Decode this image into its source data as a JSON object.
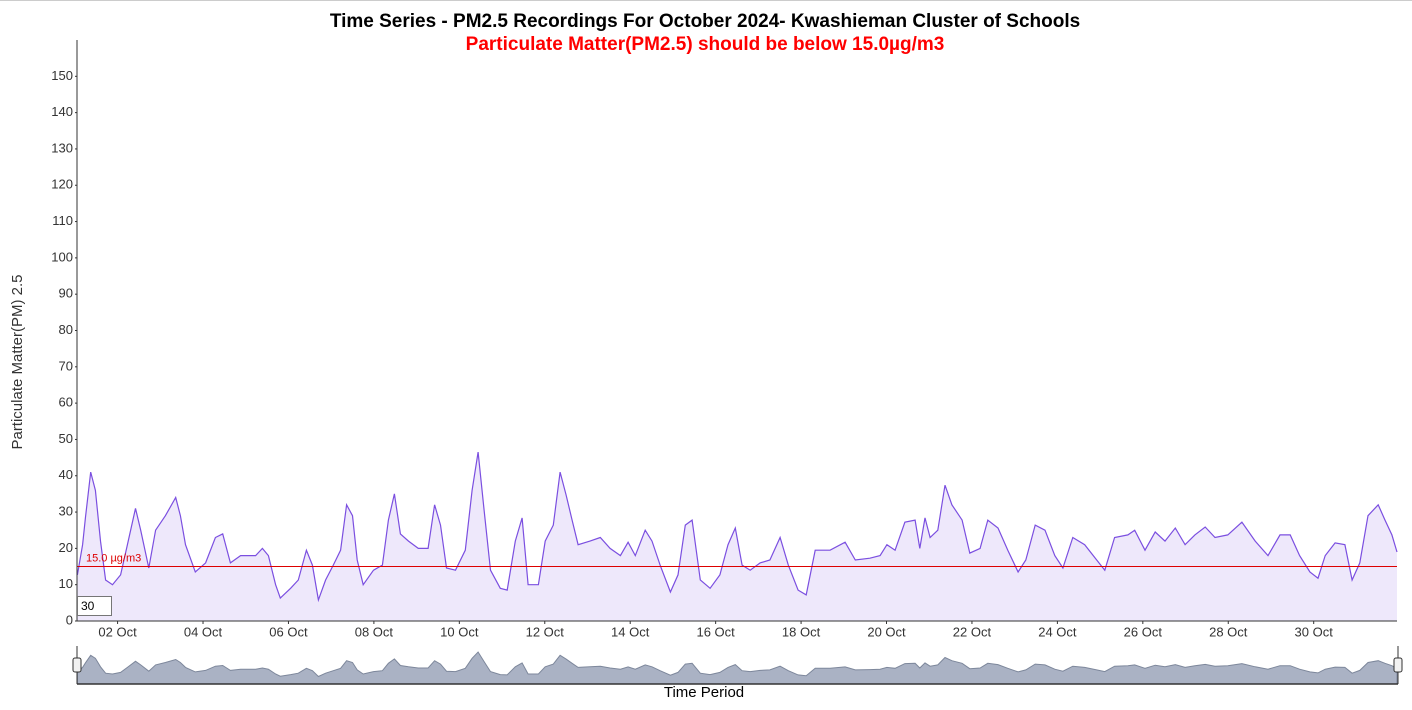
{
  "chart_data": {
    "type": "line",
    "title": "Time Series - PM2.5 Recordings For October 2024- Kwashieman Cluster of Schools",
    "subtitle": "Particulate Matter(PM2.5) should be below 15.0µg/m3",
    "y_label": "Particulate Matter(PM) 2.5",
    "x_label": "Time Period",
    "color": "#7b4fe0",
    "threshold": {
      "value": 15,
      "label": "15.0 µg/m3"
    },
    "zoom_input": "30",
    "xlim": [
      1.05,
      31.95
    ],
    "xticks": [
      {
        "value": 2,
        "label": "02 Oct"
      },
      {
        "value": 4,
        "label": "04 Oct"
      },
      {
        "value": 6,
        "label": "06 Oct"
      },
      {
        "value": 8,
        "label": "08 Oct"
      },
      {
        "value": 10,
        "label": "10 Oct"
      },
      {
        "value": 12,
        "label": "12 Oct"
      },
      {
        "value": 14,
        "label": "14 Oct"
      },
      {
        "value": 16,
        "label": "16 Oct"
      },
      {
        "value": 18,
        "label": "18 Oct"
      },
      {
        "value": 20,
        "label": "20 Oct"
      },
      {
        "value": 22,
        "label": "22 Oct"
      },
      {
        "value": 24,
        "label": "24 Oct"
      },
      {
        "value": 26,
        "label": "26 Oct"
      },
      {
        "value": 28,
        "label": "28 Oct"
      },
      {
        "value": 30,
        "label": "30 Oct"
      }
    ],
    "ylim": [
      0,
      160
    ],
    "yticks": [
      0,
      10,
      20,
      30,
      40,
      50,
      60,
      70,
      80,
      90,
      100,
      110,
      120,
      130,
      140,
      150
    ],
    "x": [
      1.06,
      1.18,
      1.25,
      1.37,
      1.48,
      1.6,
      1.72,
      1.88,
      2.07,
      2.23,
      2.42,
      2.54,
      2.73,
      2.89,
      3.12,
      3.36,
      3.47,
      3.59,
      3.82,
      4.06,
      4.29,
      4.46,
      4.64,
      4.88,
      5.23,
      5.39,
      5.53,
      5.7,
      5.81,
      6.05,
      6.23,
      6.42,
      6.56,
      6.7,
      6.87,
      7.05,
      7.22,
      7.36,
      7.5,
      7.61,
      7.75,
      7.99,
      8.2,
      8.34,
      8.48,
      8.62,
      8.81,
      9.04,
      9.27,
      9.42,
      9.56,
      9.7,
      9.91,
      10.14,
      10.3,
      10.44,
      10.58,
      10.73,
      10.96,
      11.12,
      11.31,
      11.47,
      11.61,
      11.85,
      12.01,
      12.2,
      12.36,
      12.5,
      12.64,
      12.78,
      13.06,
      13.3,
      13.53,
      13.77,
      13.95,
      14.12,
      14.35,
      14.51,
      14.7,
      14.94,
      15.12,
      15.29,
      15.45,
      15.64,
      15.87,
      16.1,
      16.29,
      16.46,
      16.62,
      16.81,
      17.04,
      17.27,
      17.51,
      17.7,
      17.93,
      18.12,
      18.33,
      18.68,
      19.03,
      19.27,
      19.61,
      19.85,
      20.01,
      20.2,
      20.43,
      20.67,
      20.78,
      20.9,
      21.02,
      21.2,
      21.37,
      21.53,
      21.77,
      21.95,
      22.19,
      22.37,
      22.61,
      22.84,
      23.08,
      23.26,
      23.48,
      23.71,
      23.94,
      24.13,
      24.36,
      24.64,
      24.92,
      25.11,
      25.34,
      25.65,
      25.81,
      26.05,
      26.29,
      26.52,
      26.76,
      26.99,
      27.22,
      27.46,
      27.69,
      27.99,
      28.32,
      28.63,
      28.93,
      29.21,
      29.45,
      29.67,
      29.91,
      30.1,
      30.27,
      30.5,
      30.73,
      30.9,
      31.08,
      31.27,
      31.51,
      31.67,
      31.83,
      31.95
    ],
    "values": [
      12.7,
      21,
      28.6,
      41,
      36,
      22,
      11.3,
      10,
      12.7,
      21,
      31,
      25,
      14.6,
      25,
      29,
      34,
      29,
      21,
      13.5,
      16,
      23,
      24,
      16,
      18,
      18,
      20,
      18,
      10,
      6.3,
      9,
      11.3,
      19.5,
      15.4,
      5.8,
      11.3,
      15.4,
      19.5,
      32,
      29,
      16.8,
      10,
      14,
      15.4,
      27.8,
      35,
      24,
      22,
      20,
      20,
      32,
      26.4,
      14.6,
      14,
      19.5,
      36,
      46.5,
      30.5,
      14,
      9,
      8.5,
      22,
      28.4,
      10,
      10,
      22,
      26.4,
      41,
      34.7,
      27.8,
      21,
      22,
      23,
      20,
      18,
      21.7,
      18,
      25,
      22,
      15.4,
      8,
      12.7,
      26.4,
      27.8,
      11.3,
      9,
      12.7,
      21,
      25.6,
      15.4,
      14,
      16,
      16.8,
      23,
      15.4,
      8.5,
      7.2,
      19.5,
      19.5,
      21.7,
      16.8,
      17.3,
      18,
      21,
      19.5,
      27.2,
      27.8,
      20,
      28.4,
      23,
      25,
      37.4,
      32,
      27.8,
      18.7,
      20,
      27.8,
      25.6,
      19.5,
      13.5,
      16.8,
      26.4,
      25,
      18,
      14.6,
      23,
      21,
      16.8,
      14,
      23,
      23.7,
      25,
      19.5,
      24.5,
      22,
      25.6,
      21,
      23.7,
      25.9,
      23,
      23.7,
      27.2,
      22,
      18,
      23.7,
      23.7,
      18,
      13.5,
      11.8,
      18,
      21.5,
      21,
      11.3,
      16,
      29,
      32,
      27.8,
      23.7,
      19
    ]
  }
}
